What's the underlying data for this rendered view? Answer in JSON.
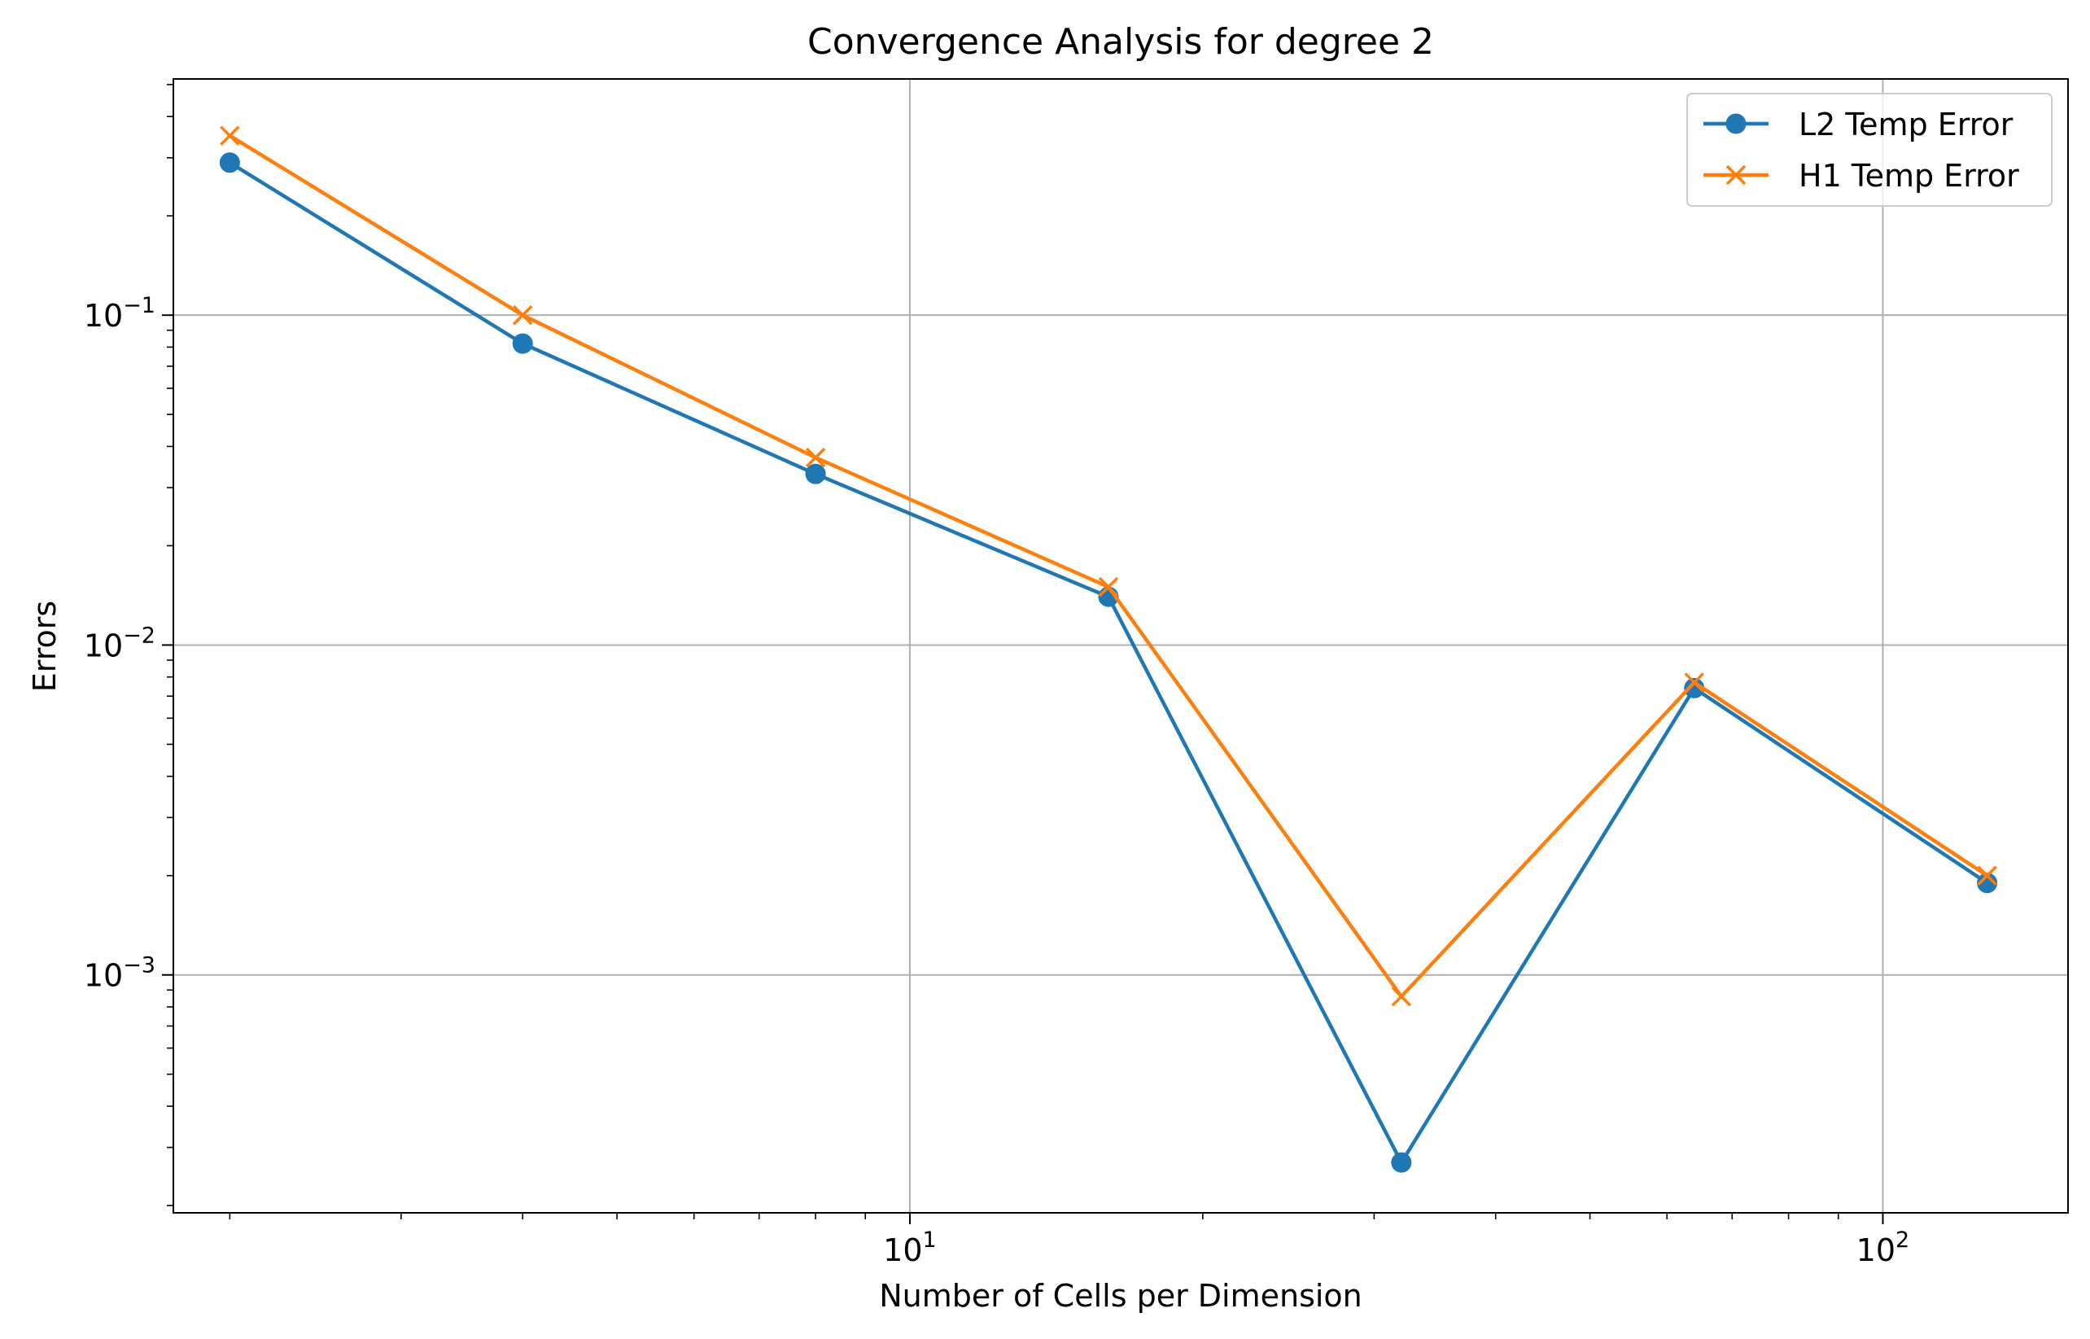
{
  "chart_data": {
    "type": "line",
    "title": "Convergence Analysis for degree 2",
    "xlabel": "Number of Cells per Dimension",
    "ylabel": "Errors",
    "xscale": "log",
    "yscale": "log",
    "xlim": [
      1.75,
      155
    ],
    "ylim": [
      0.00019,
      0.52
    ],
    "grid": true,
    "legend_position": "top-right",
    "x": [
      2,
      4,
      8,
      16,
      32,
      64,
      128
    ],
    "xticks": [
      {
        "value": 10,
        "base": "10",
        "exp": "1"
      },
      {
        "value": 100,
        "base": "10",
        "exp": "2"
      }
    ],
    "yticks": [
      {
        "value": 0.1,
        "base": "10",
        "exp": "−1"
      },
      {
        "value": 0.01,
        "base": "10",
        "exp": "−2"
      },
      {
        "value": 0.001,
        "base": "10",
        "exp": "−3"
      }
    ],
    "series": [
      {
        "name": "L2 Temp Error",
        "color": "#1f77b4",
        "marker": "circle",
        "values": [
          0.29,
          0.082,
          0.033,
          0.014,
          0.00027,
          0.0074,
          0.0019
        ]
      },
      {
        "name": "H1 Temp Error",
        "color": "#ff7f0e",
        "marker": "x",
        "values": [
          0.35,
          0.1,
          0.037,
          0.015,
          0.00086,
          0.0077,
          0.002
        ]
      }
    ]
  }
}
